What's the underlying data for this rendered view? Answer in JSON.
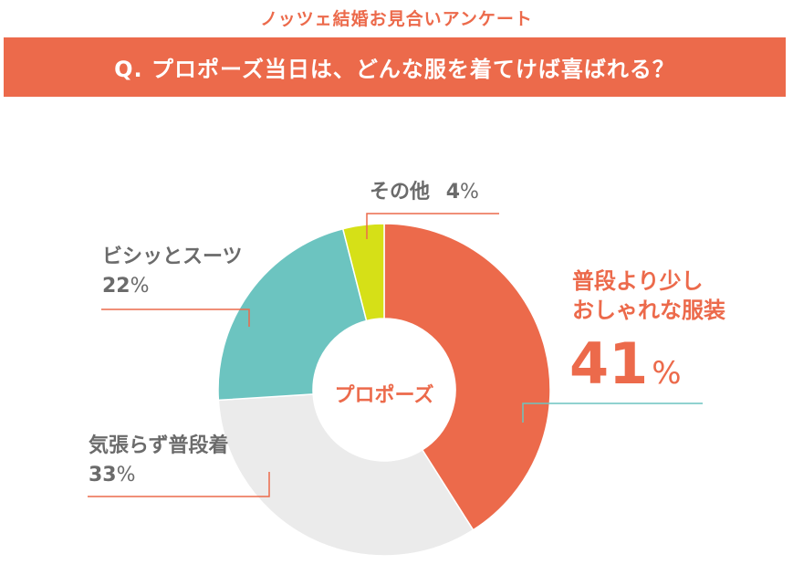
{
  "header": {
    "survey_title": "ノッツェ結婚お見合いアンケート",
    "question": "Q. プロポーズ当日は、どんな服を着てけば喜ばれる？"
  },
  "chart_data": {
    "type": "pie",
    "variant": "donut",
    "center_label": "プロポーズ",
    "start_angle_deg": 0,
    "direction": "clockwise",
    "slices": [
      {
        "label": "普段より少しおしゃれな服装",
        "label_line1": "普段より少し",
        "label_line2": "おしゃれな服装",
        "value": 41,
        "display": "41",
        "unit": "%",
        "color": "#ec6a4b"
      },
      {
        "label": "気張らず普段着",
        "value": 33,
        "display": "33",
        "unit": "%",
        "color": "#ebebeb"
      },
      {
        "label": "ビシッとスーツ",
        "value": 22,
        "display": "22",
        "unit": "%",
        "color": "#6cc4c0"
      },
      {
        "label": "その他",
        "value": 4,
        "display": "4",
        "unit": "%",
        "color": "#d6e017"
      }
    ],
    "colors": {
      "accent": "#ec6a4b",
      "leader_teal": "#6cc4c0",
      "text_grey": "#6b6b6b"
    }
  }
}
